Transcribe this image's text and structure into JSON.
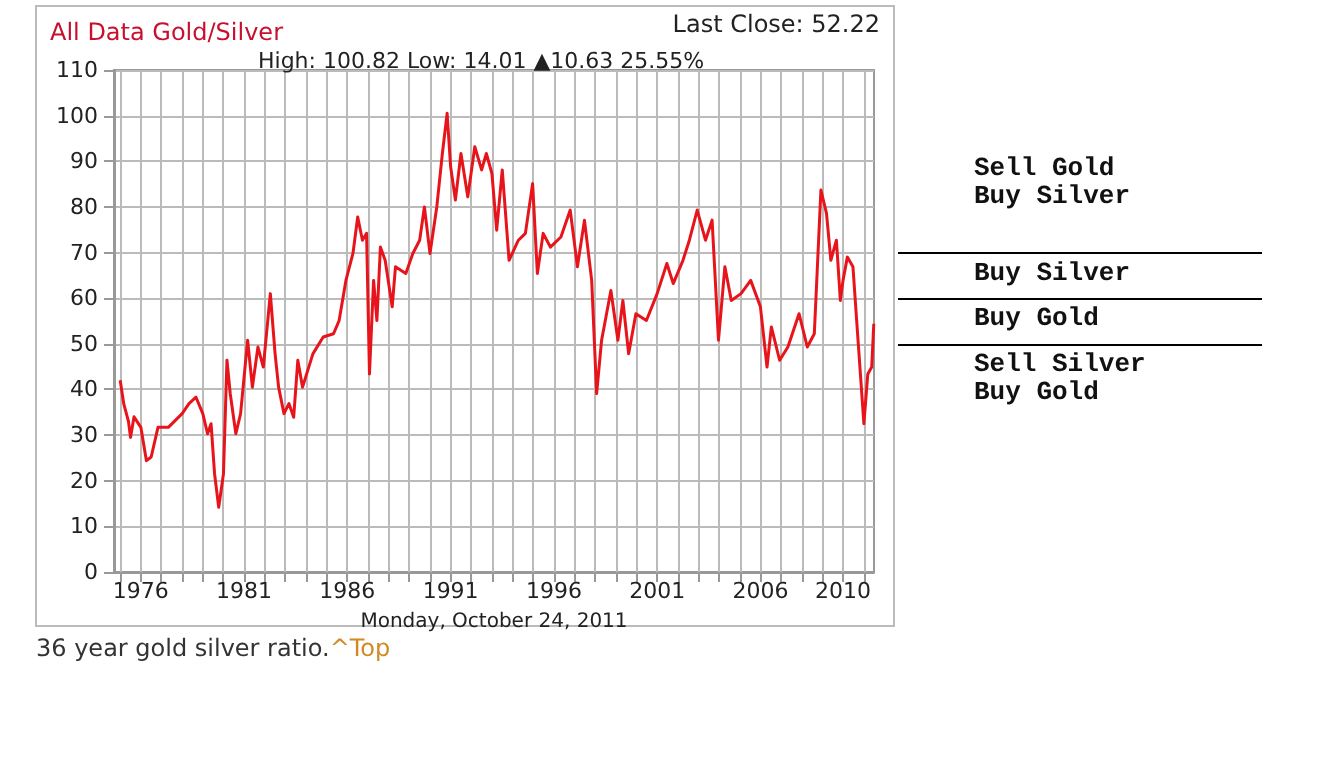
{
  "chart_data": {
    "type": "line",
    "title": "All Data Gold/Silver",
    "subtitle": "High: 100.82 Low: 14.01 ▲10.63 25.55%",
    "xlabel": "Monday, October 24, 2011",
    "annotations": [
      "Last Close: 52.22",
      "36 year gold silver ratio.",
      "^Top",
      "Sell Gold\nBuy Silver"
    ],
    "series": [
      {
        "color": "#e8141b",
        "x": [
          1975.0,
          1975.17,
          1975.4,
          1975.5,
          1975.67,
          1976.0,
          1976.27,
          1976.5,
          1976.83,
          1977.33,
          1978.0,
          1978.33,
          1978.67,
          1979.0,
          1979.23,
          1979.4,
          1979.57,
          1979.77,
          1980.0,
          1980.17,
          1980.33,
          1980.6,
          1980.83,
          1981.17,
          1981.4,
          1981.67,
          1981.93,
          1982.27,
          1982.5,
          1982.67,
          1982.93,
          1983.17,
          1983.4,
          1983.6,
          1983.83,
          1984.33,
          1984.83,
          1985.33,
          1985.6,
          1985.93,
          1986.27,
          1986.5,
          1986.73,
          1986.93,
          1987.07,
          1987.27,
          1987.43,
          1987.6,
          1987.83,
          1988.17,
          1988.33,
          1988.83,
          1989.17,
          1989.5,
          1989.73,
          1990.0,
          1990.33,
          1990.6,
          1990.83,
          1991.0,
          1991.23,
          1991.5,
          1991.83,
          1992.17,
          1992.5,
          1992.73,
          1993.0,
          1993.23,
          1993.5,
          1993.83,
          1994.28,
          1994.62,
          1994.97,
          1995.2,
          1995.48,
          1995.83,
          1996.34,
          1996.79,
          1997.14,
          1997.48,
          1997.83,
          1998.07,
          1998.31,
          1998.76,
          1999.1,
          1999.34,
          1999.62,
          1999.97,
          2000.48,
          2001.0,
          2001.47,
          2001.78,
          2002.25,
          2002.56,
          2002.94,
          2003.34,
          2003.66,
          2003.97,
          2004.28,
          2004.59,
          2005.06,
          2005.53,
          2006.0,
          2006.32,
          2006.53,
          2006.93,
          2007.33,
          2007.87,
          2008.27,
          2008.61,
          2008.93,
          2009.2,
          2009.41,
          2009.68,
          2009.87,
          2010.0,
          2010.21,
          2010.48,
          2010.75,
          2011.01,
          2011.2,
          2011.39,
          2011.49
        ],
        "values": [
          42,
          36.9,
          33,
          29.5,
          34,
          31.7,
          24.4,
          25.2,
          31.7,
          31.7,
          34.7,
          36.9,
          38.3,
          34.7,
          30.3,
          32.5,
          21.5,
          14.2,
          21.5,
          46.4,
          39,
          30.3,
          34.7,
          50.8,
          40.5,
          49.3,
          44.9,
          61,
          47.8,
          40.5,
          34.7,
          36.9,
          33.9,
          46.4,
          40.5,
          47.8,
          51.5,
          52.2,
          55.1,
          63.9,
          69.8,
          77.8,
          72.7,
          74.2,
          43.4,
          63.9,
          55.1,
          71.2,
          68.3,
          58.1,
          66.9,
          65.4,
          69.8,
          72.7,
          80,
          69.8,
          80,
          91.7,
          100.5,
          88.8,
          81.5,
          91.7,
          82.2,
          93.2,
          88.1,
          91.7,
          87.3,
          74.9,
          88.1,
          68.3,
          72.7,
          74.2,
          85.1,
          65.4,
          74.2,
          71.2,
          73.4,
          79.3,
          66.9,
          77.1,
          63.9,
          39.1,
          50.8,
          61.7,
          50.8,
          59.5,
          47.8,
          56.6,
          55.1,
          61,
          67.6,
          63.2,
          68.3,
          72.7,
          79.3,
          72.7,
          77.1,
          50.8,
          66.9,
          59.5,
          61,
          63.9,
          58.1,
          44.9,
          53.7,
          46.4,
          49.3,
          56.6,
          49.3,
          52.2,
          83.7,
          78.6,
          68.3,
          72.7,
          59.5,
          63.9,
          69,
          66.9,
          49.3,
          32.5,
          43.4,
          44.9,
          54.4
        ]
      }
    ],
    "xlim": [
      1974.7,
      2011.5
    ],
    "xticks": [
      {
        "value": 1975,
        "label": null
      },
      1976,
      {
        "value": 1977,
        "label": null
      },
      {
        "value": 1978,
        "label": null
      },
      {
        "value": 1979,
        "label": null
      },
      {
        "value": 1980,
        "label": null
      },
      1981,
      {
        "value": 1982,
        "label": null
      },
      {
        "value": 1983,
        "label": null
      },
      {
        "value": 1984,
        "label": null
      },
      {
        "value": 1985,
        "label": null
      },
      1986,
      {
        "value": 1987,
        "label": null
      },
      {
        "value": 1988,
        "label": null
      },
      {
        "value": 1989,
        "label": null
      },
      {
        "value": 1990,
        "label": null
      },
      1991,
      {
        "value": 1992,
        "label": null
      },
      {
        "value": 1993,
        "label": null
      },
      {
        "value": 1994,
        "label": null
      },
      {
        "value": 1995,
        "label": null
      },
      1996,
      {
        "value": 1997,
        "label": null
      },
      {
        "value": 1998,
        "label": null
      },
      {
        "value": 1999,
        "label": null
      },
      {
        "value": 2000,
        "label": null
      },
      2001,
      {
        "value": 2002,
        "label": null
      },
      {
        "value": 2003,
        "label": null
      },
      {
        "value": 2004,
        "label": null
      },
      {
        "value": 2005,
        "label": null
      },
      2006,
      {
        "value": 2007,
        "label": null
      },
      {
        "value": 2008,
        "label": null
      },
      {
        "value": 2009,
        "label": null
      },
      2010,
      {
        "value": 2011,
        "label": null
      }
    ],
    "ylim": [
      0,
      110
    ],
    "yticks": [
      0,
      10,
      20,
      30,
      40,
      50,
      60,
      70,
      80,
      90,
      100,
      110
    ],
    "ref_lines": [
      {
        "axis": "y",
        "value": 70,
        "label": "Buy Silver",
        "color": "#000000"
      },
      {
        "axis": "y",
        "value": 60,
        "label": "Buy Gold",
        "color": "#000000"
      },
      {
        "axis": "y",
        "value": 50,
        "label": "Sell Silver\nBuy Gold",
        "color": "#000000"
      }
    ],
    "grid": true,
    "marker": "none",
    "line_style": "solid"
  }
}
